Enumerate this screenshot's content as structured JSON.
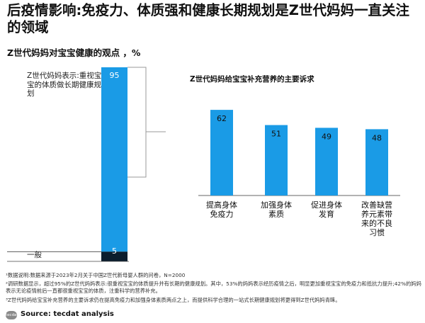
{
  "title": "后疫情影响:免疫力、体质强和健康长期规划是Z世代妈妈一直关注的领域",
  "subtitle": "Z世代妈妈对宝宝健康的观点 ，%",
  "left_label": "Z世代妈妈表示:重视宝宝的体质做长期健康规划",
  "left_bottom_label": "一般",
  "right_title": "Z世代妈妈给宝宝补充营养的主要诉求",
  "notes": [
    "¹数据说明:数据来源于2023年2月关于中国Z世代新母婴人群的问卷，N=2000",
    "²调研数据显示，超过95%的Z世代妈妈表示:很重视宝宝的体质提升并有长期的健康规划。其中，53%的妈妈表示经历疫情之后，明显更加重视宝宝的免疫力和抵抗力提升;42%的妈妈表示无论疫情前后一直都很重视宝宝的体质，注重科学的营养补充。",
    "³Z世代妈妈给宝宝补充营养的主要诉求仍在提高免疫力和加强身体素质两点之上，而提供科学合理的一站式长期健康规划将更得到Z世代妈妈青睐。"
  ],
  "logo_text": "tecdat",
  "source": "Source: tecdat analysis",
  "colors": {
    "blue": "#1a9be6",
    "dark": "#0b1d2e",
    "connector": "#9a9a9a"
  },
  "chart_data": [
    {
      "type": "bar",
      "stacked": true,
      "title": "Z世代妈妈对宝宝健康的观点 ，%",
      "categories": [
        "Z世代妈妈表示:重视宝宝的体质做长期健康规划",
        "一般"
      ],
      "values": [
        95,
        5
      ],
      "ylim": [
        0,
        100
      ]
    },
    {
      "type": "bar",
      "title": "Z世代妈妈给宝宝补充营养的主要诉求",
      "categories": [
        [
          "提高身体",
          "免疫力"
        ],
        [
          "加强身体",
          "素质"
        ],
        [
          "促进身体",
          "发育"
        ],
        [
          "改善缺营",
          "养元素带",
          "来的不良",
          "习惯"
        ]
      ],
      "values": [
        62,
        51,
        49,
        48
      ],
      "ylim": [
        0,
        100
      ]
    }
  ]
}
